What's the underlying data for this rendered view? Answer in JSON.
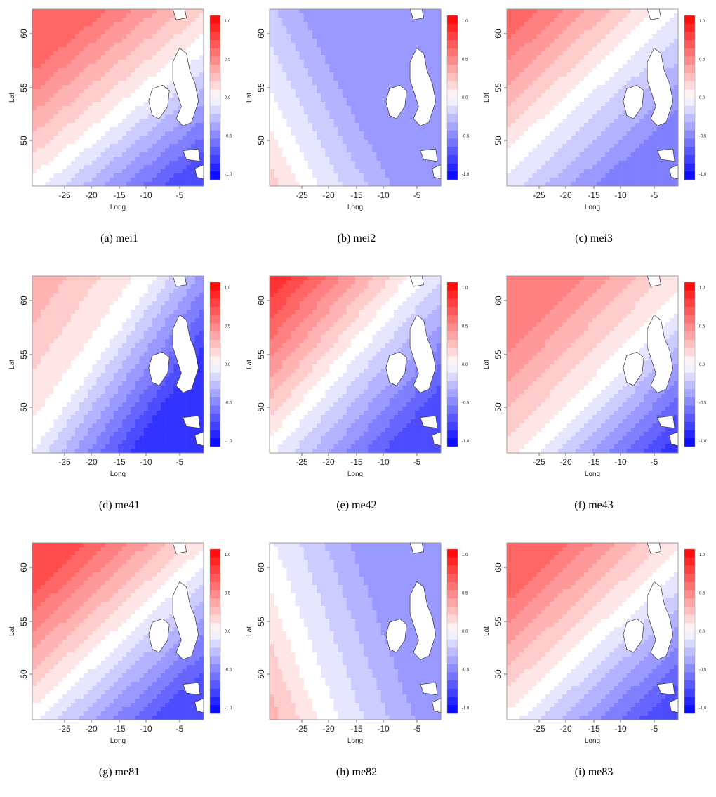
{
  "figure": {
    "common": {
      "xlabel": "Long",
      "ylabel": "Lat",
      "x_ticks": [
        "-25",
        "-20",
        "-15",
        "-10",
        "-5"
      ],
      "y_ticks": [
        "60",
        "55",
        "50"
      ],
      "colorbar_ticks": [
        "1.0",
        "0.5",
        "0.0",
        "-0.5",
        "-1.0"
      ],
      "colors": {
        "positive": "#ff0000",
        "negative": "#0000ff",
        "neutral": "#ffffff",
        "land": "#ffffff",
        "coast": "#333333"
      }
    },
    "panels": [
      {
        "id": "mei1",
        "caption": "(a) mei1",
        "zero_line": [
          0.6,
          0.52
        ],
        "gradient": [
          0.4,
          0.5
        ],
        "pos_extent": 0.6,
        "neg_extent": 0.75
      },
      {
        "id": "mei2",
        "caption": "(b) mei2",
        "zero_line": [
          0.25,
          1.05
        ],
        "gradient": [
          0.75,
          -0.4
        ],
        "pos_extent": 0.6,
        "neg_extent": 0.45
      },
      {
        "id": "mei3",
        "caption": "(c) mei3",
        "zero_line": [
          0.78,
          0.15
        ],
        "gradient": [
          0.55,
          0.6
        ],
        "pos_extent": 0.6,
        "neg_extent": 0.55
      },
      {
        "id": "me41",
        "caption": "(d) me41",
        "zero_line": [
          0.58,
          0.15
        ],
        "gradient": [
          0.55,
          0.4
        ],
        "pos_extent": 0.35,
        "neg_extent": 0.85
      },
      {
        "id": "me42",
        "caption": "(e) me42",
        "zero_line": [
          0.73,
          0.15
        ],
        "gradient": [
          0.45,
          0.4
        ],
        "pos_extent": 0.75,
        "neg_extent": 0.7
      },
      {
        "id": "me43",
        "caption": "(f) me43",
        "zero_line": [
          0.6,
          0.55
        ],
        "gradient": [
          0.55,
          0.55
        ],
        "pos_extent": 0.5,
        "neg_extent": 0.8
      },
      {
        "id": "me81",
        "caption": "(g) me81",
        "zero_line": [
          0.7,
          0.35
        ],
        "gradient": [
          0.45,
          0.5
        ],
        "pos_extent": 0.7,
        "neg_extent": 0.75
      },
      {
        "id": "me82",
        "caption": "(h) me82",
        "zero_line": [
          0.35,
          1.05
        ],
        "gradient": [
          0.8,
          -0.3
        ],
        "pos_extent": 0.55,
        "neg_extent": 0.4
      },
      {
        "id": "me83",
        "caption": "(i) me83",
        "zero_line": [
          0.62,
          0.45
        ],
        "gradient": [
          0.5,
          0.55
        ],
        "pos_extent": 0.6,
        "neg_extent": 0.7
      }
    ]
  }
}
